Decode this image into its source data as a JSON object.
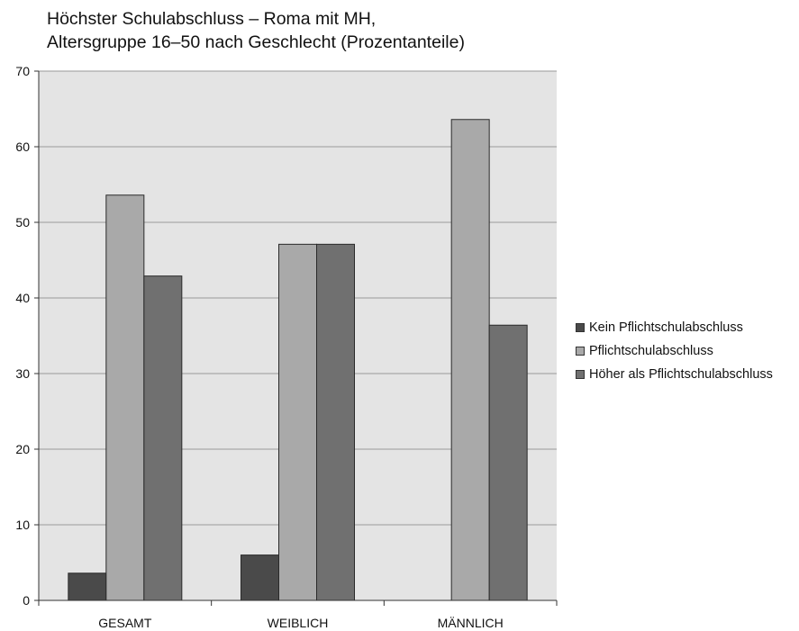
{
  "chart_data": {
    "type": "bar",
    "title_lines": [
      "Höchster Schulabschluss – Roma mit MH,",
      "Altersgruppe 16–50 nach Geschlecht (Prozentanteile)"
    ],
    "xlabel": "",
    "ylabel": "",
    "ylim": [
      0,
      70
    ],
    "yticks": [
      0,
      10,
      20,
      30,
      40,
      50,
      60,
      70
    ],
    "categories": [
      "GESAMT",
      "WEIBLICH",
      "MÄNNLICH"
    ],
    "series": [
      {
        "name": "Kein Pflichtschulabschluss",
        "color": "#4a4a4a",
        "values": [
          3.6,
          6.0,
          0
        ]
      },
      {
        "name": "Pflichtschulabschluss",
        "color": "#a9a9a9",
        "values": [
          53.6,
          47.1,
          63.6
        ]
      },
      {
        "name": "Höher als Pflichtschulabschluss",
        "color": "#707070",
        "values": [
          42.9,
          47.1,
          36.4
        ]
      }
    ],
    "grid": true,
    "plot_background": "#e4e4e4",
    "legend_position": "right"
  }
}
